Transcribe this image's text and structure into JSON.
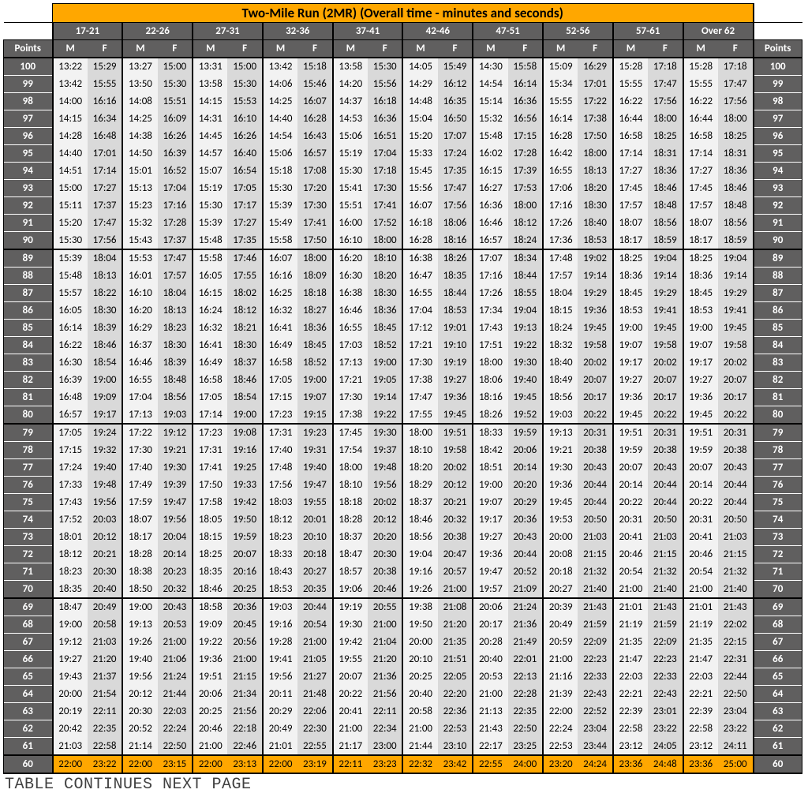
{
  "title": "Two-Mile Run (2MR) (Overall time - minutes and seconds)",
  "points_label": "Points",
  "footnote": "TABLE CONTINUES NEXT PAGE",
  "age_groups": [
    "17-21",
    "22-26",
    "27-31",
    "32-36",
    "37-41",
    "42-46",
    "47-51",
    "52-56",
    "57-61",
    "Over 62"
  ],
  "mf": [
    "M",
    "F"
  ],
  "colors": {
    "title_bg": "#ffa700",
    "header_bg": "#605f5f",
    "m_bg": "#f2f2f2",
    "f_bg": "#d9d9d9",
    "gold_bg": "#ffa700"
  },
  "section_breaks": [
    100,
    89,
    79,
    69,
    60
  ],
  "gold_row": 60,
  "rows": [
    {
      "p": 100,
      "v": [
        "13:22",
        "15:29",
        "13:27",
        "15:00",
        "13:31",
        "15:00",
        "13:42",
        "15:18",
        "13:58",
        "15:30",
        "14:05",
        "15:49",
        "14:30",
        "15:58",
        "15:09",
        "16:29",
        "15:28",
        "17:18",
        "15:28",
        "17:18"
      ]
    },
    {
      "p": 99,
      "v": [
        "13:42",
        "15:55",
        "13:50",
        "15:30",
        "13:58",
        "15:30",
        "14:06",
        "15:46",
        "14:20",
        "15:56",
        "14:29",
        "16:12",
        "14:54",
        "16:14",
        "15:34",
        "17:01",
        "15:55",
        "17:47",
        "15:55",
        "17:47"
      ]
    },
    {
      "p": 98,
      "v": [
        "14:00",
        "16:16",
        "14:08",
        "15:51",
        "14:15",
        "15:53",
        "14:25",
        "16:07",
        "14:37",
        "16:18",
        "14:48",
        "16:35",
        "15:14",
        "16:36",
        "15:55",
        "17:22",
        "16:22",
        "17:56",
        "16:22",
        "17:56"
      ]
    },
    {
      "p": 97,
      "v": [
        "14:15",
        "16:34",
        "14:25",
        "16:09",
        "14:31",
        "16:10",
        "14:40",
        "16:28",
        "14:53",
        "16:36",
        "15:04",
        "16:50",
        "15:32",
        "16:56",
        "16:14",
        "17:38",
        "16:44",
        "18:00",
        "16:44",
        "18:00"
      ]
    },
    {
      "p": 96,
      "v": [
        "14:28",
        "16:48",
        "14:38",
        "16:26",
        "14:45",
        "16:26",
        "14:54",
        "16:43",
        "15:06",
        "16:51",
        "15:20",
        "17:07",
        "15:48",
        "17:15",
        "16:28",
        "17:50",
        "16:58",
        "18:25",
        "16:58",
        "18:25"
      ]
    },
    {
      "p": 95,
      "v": [
        "14:40",
        "17:01",
        "14:50",
        "16:39",
        "14:57",
        "16:40",
        "15:06",
        "16:57",
        "15:19",
        "17:04",
        "15:33",
        "17:24",
        "16:02",
        "17:28",
        "16:42",
        "18:00",
        "17:14",
        "18:31",
        "17:14",
        "18:31"
      ]
    },
    {
      "p": 94,
      "v": [
        "14:51",
        "17:14",
        "15:01",
        "16:52",
        "15:07",
        "16:54",
        "15:18",
        "17:08",
        "15:30",
        "17:18",
        "15:45",
        "17:35",
        "16:15",
        "17:39",
        "16:55",
        "18:13",
        "17:27",
        "18:36",
        "17:27",
        "18:36"
      ]
    },
    {
      "p": 93,
      "v": [
        "15:00",
        "17:27",
        "15:13",
        "17:04",
        "15:19",
        "17:05",
        "15:30",
        "17:20",
        "15:41",
        "17:30",
        "15:56",
        "17:47",
        "16:27",
        "17:53",
        "17:06",
        "18:20",
        "17:45",
        "18:46",
        "17:45",
        "18:46"
      ]
    },
    {
      "p": 92,
      "v": [
        "15:11",
        "17:37",
        "15:23",
        "17:16",
        "15:30",
        "17:17",
        "15:39",
        "17:30",
        "15:51",
        "17:41",
        "16:07",
        "17:56",
        "16:36",
        "18:00",
        "17:16",
        "18:30",
        "17:57",
        "18:48",
        "17:57",
        "18:48"
      ]
    },
    {
      "p": 91,
      "v": [
        "15:20",
        "17:47",
        "15:32",
        "17:28",
        "15:39",
        "17:27",
        "15:49",
        "17:41",
        "16:00",
        "17:52",
        "16:18",
        "18:06",
        "16:46",
        "18:12",
        "17:26",
        "18:40",
        "18:07",
        "18:56",
        "18:07",
        "18:56"
      ]
    },
    {
      "p": 90,
      "v": [
        "15:30",
        "17:56",
        "15:43",
        "17:37",
        "15:48",
        "17:35",
        "15:58",
        "17:50",
        "16:10",
        "18:00",
        "16:28",
        "18:16",
        "16:57",
        "18:24",
        "17:36",
        "18:53",
        "18:17",
        "18:59",
        "18:17",
        "18:59"
      ]
    },
    {
      "p": 89,
      "v": [
        "15:39",
        "18:04",
        "15:53",
        "17:47",
        "15:58",
        "17:46",
        "16:07",
        "18:00",
        "16:20",
        "18:10",
        "16:38",
        "18:26",
        "17:07",
        "18:34",
        "17:48",
        "19:02",
        "18:25",
        "19:04",
        "18:25",
        "19:04"
      ]
    },
    {
      "p": 88,
      "v": [
        "15:48",
        "18:13",
        "16:01",
        "17:57",
        "16:05",
        "17:55",
        "16:16",
        "18:09",
        "16:30",
        "18:20",
        "16:47",
        "18:35",
        "17:16",
        "18:44",
        "17:57",
        "19:14",
        "18:36",
        "19:14",
        "18:36",
        "19:14"
      ]
    },
    {
      "p": 87,
      "v": [
        "15:57",
        "18:22",
        "16:10",
        "18:04",
        "16:15",
        "18:02",
        "16:25",
        "18:18",
        "16:38",
        "18:30",
        "16:55",
        "18:44",
        "17:26",
        "18:55",
        "18:04",
        "19:29",
        "18:45",
        "19:29",
        "18:45",
        "19:29"
      ]
    },
    {
      "p": 86,
      "v": [
        "16:05",
        "18:30",
        "16:20",
        "18:13",
        "16:24",
        "18:12",
        "16:32",
        "18:27",
        "16:46",
        "18:36",
        "17:04",
        "18:53",
        "17:34",
        "19:04",
        "18:15",
        "19:36",
        "18:53",
        "19:41",
        "18:53",
        "19:41"
      ]
    },
    {
      "p": 85,
      "v": [
        "16:14",
        "18:39",
        "16:29",
        "18:23",
        "16:32",
        "18:21",
        "16:41",
        "18:36",
        "16:55",
        "18:45",
        "17:12",
        "19:01",
        "17:43",
        "19:13",
        "18:24",
        "19:45",
        "19:00",
        "19:45",
        "19:00",
        "19:45"
      ]
    },
    {
      "p": 84,
      "v": [
        "16:22",
        "18:46",
        "16:37",
        "18:30",
        "16:41",
        "18:30",
        "16:49",
        "18:45",
        "17:03",
        "18:52",
        "17:21",
        "19:10",
        "17:51",
        "19:22",
        "18:32",
        "19:58",
        "19:07",
        "19:58",
        "19:07",
        "19:58"
      ]
    },
    {
      "p": 83,
      "v": [
        "16:30",
        "18:54",
        "16:46",
        "18:39",
        "16:49",
        "18:37",
        "16:58",
        "18:52",
        "17:13",
        "19:00",
        "17:30",
        "19:19",
        "18:00",
        "19:30",
        "18:40",
        "20:02",
        "19:17",
        "20:02",
        "19:17",
        "20:02"
      ]
    },
    {
      "p": 82,
      "v": [
        "16:39",
        "19:00",
        "16:55",
        "18:48",
        "16:58",
        "18:46",
        "17:05",
        "19:00",
        "17:21",
        "19:05",
        "17:38",
        "19:27",
        "18:06",
        "19:40",
        "18:49",
        "20:07",
        "19:27",
        "20:07",
        "19:27",
        "20:07"
      ]
    },
    {
      "p": 81,
      "v": [
        "16:48",
        "19:09",
        "17:04",
        "18:56",
        "17:05",
        "18:54",
        "17:15",
        "19:07",
        "17:30",
        "19:14",
        "17:47",
        "19:36",
        "18:16",
        "19:45",
        "18:56",
        "20:17",
        "19:36",
        "20:17",
        "19:36",
        "20:17"
      ]
    },
    {
      "p": 80,
      "v": [
        "16:57",
        "19:17",
        "17:13",
        "19:03",
        "17:14",
        "19:00",
        "17:23",
        "19:15",
        "17:38",
        "19:22",
        "17:55",
        "19:45",
        "18:26",
        "19:52",
        "19:03",
        "20:22",
        "19:45",
        "20:22",
        "19:45",
        "20:22"
      ]
    },
    {
      "p": 79,
      "v": [
        "17:05",
        "19:24",
        "17:22",
        "19:12",
        "17:23",
        "19:08",
        "17:31",
        "19:23",
        "17:45",
        "19:30",
        "18:00",
        "19:51",
        "18:33",
        "19:59",
        "19:13",
        "20:31",
        "19:51",
        "20:31",
        "19:51",
        "20:31"
      ]
    },
    {
      "p": 78,
      "v": [
        "17:15",
        "19:32",
        "17:30",
        "19:21",
        "17:31",
        "19:16",
        "17:40",
        "19:31",
        "17:54",
        "19:37",
        "18:10",
        "19:58",
        "18:42",
        "20:06",
        "19:21",
        "20:38",
        "19:59",
        "20:38",
        "19:59",
        "20:38"
      ]
    },
    {
      "p": 77,
      "v": [
        "17:24",
        "19:40",
        "17:40",
        "19:30",
        "17:41",
        "19:25",
        "17:48",
        "19:40",
        "18:00",
        "19:48",
        "18:20",
        "20:02",
        "18:51",
        "20:14",
        "19:30",
        "20:43",
        "20:07",
        "20:43",
        "20:07",
        "20:43"
      ]
    },
    {
      "p": 76,
      "v": [
        "17:33",
        "19:48",
        "17:49",
        "19:39",
        "17:50",
        "19:33",
        "17:56",
        "19:47",
        "18:10",
        "19:56",
        "18:29",
        "20:12",
        "19:00",
        "20:20",
        "19:36",
        "20:44",
        "20:14",
        "20:44",
        "20:14",
        "20:44"
      ]
    },
    {
      "p": 75,
      "v": [
        "17:43",
        "19:56",
        "17:59",
        "19:47",
        "17:58",
        "19:42",
        "18:03",
        "19:55",
        "18:18",
        "20:02",
        "18:37",
        "20:21",
        "19:07",
        "20:29",
        "19:45",
        "20:44",
        "20:22",
        "20:44",
        "20:22",
        "20:44"
      ]
    },
    {
      "p": 74,
      "v": [
        "17:52",
        "20:03",
        "18:07",
        "19:56",
        "18:05",
        "19:50",
        "18:12",
        "20:01",
        "18:28",
        "20:12",
        "18:46",
        "20:32",
        "19:17",
        "20:36",
        "19:53",
        "20:50",
        "20:31",
        "20:50",
        "20:31",
        "20:50"
      ]
    },
    {
      "p": 73,
      "v": [
        "18:01",
        "20:12",
        "18:17",
        "20:04",
        "18:15",
        "19:59",
        "18:23",
        "20:10",
        "18:37",
        "20:20",
        "18:56",
        "20:38",
        "19:27",
        "20:43",
        "20:00",
        "21:03",
        "20:41",
        "21:03",
        "20:41",
        "21:03"
      ]
    },
    {
      "p": 72,
      "v": [
        "18:12",
        "20:21",
        "18:28",
        "20:14",
        "18:25",
        "20:07",
        "18:33",
        "20:18",
        "18:47",
        "20:30",
        "19:04",
        "20:47",
        "19:36",
        "20:44",
        "20:08",
        "21:15",
        "20:46",
        "21:15",
        "20:46",
        "21:15"
      ]
    },
    {
      "p": 71,
      "v": [
        "18:23",
        "20:30",
        "18:38",
        "20:23",
        "18:35",
        "20:16",
        "18:43",
        "20:27",
        "18:57",
        "20:38",
        "19:16",
        "20:57",
        "19:47",
        "20:52",
        "20:18",
        "21:32",
        "20:54",
        "21:32",
        "20:54",
        "21:32"
      ]
    },
    {
      "p": 70,
      "v": [
        "18:35",
        "20:40",
        "18:50",
        "20:32",
        "18:46",
        "20:25",
        "18:53",
        "20:35",
        "19:06",
        "20:46",
        "19:26",
        "21:00",
        "19:57",
        "21:09",
        "20:27",
        "21:40",
        "21:00",
        "21:40",
        "21:00",
        "21:40"
      ]
    },
    {
      "p": 69,
      "v": [
        "18:47",
        "20:49",
        "19:00",
        "20:43",
        "18:58",
        "20:36",
        "19:03",
        "20:44",
        "19:19",
        "20:55",
        "19:38",
        "21:08",
        "20:06",
        "21:24",
        "20:39",
        "21:43",
        "21:01",
        "21:43",
        "21:01",
        "21:43"
      ]
    },
    {
      "p": 68,
      "v": [
        "19:00",
        "20:58",
        "19:13",
        "20:53",
        "19:09",
        "20:45",
        "19:16",
        "20:54",
        "19:30",
        "21:00",
        "19:50",
        "21:20",
        "20:17",
        "21:36",
        "20:49",
        "21:59",
        "21:19",
        "21:59",
        "21:19",
        "22:02"
      ]
    },
    {
      "p": 67,
      "v": [
        "19:12",
        "21:03",
        "19:26",
        "21:00",
        "19:22",
        "20:56",
        "19:28",
        "21:00",
        "19:42",
        "21:04",
        "20:00",
        "21:35",
        "20:28",
        "21:49",
        "20:59",
        "22:09",
        "21:35",
        "22:09",
        "21:35",
        "22:15"
      ]
    },
    {
      "p": 66,
      "v": [
        "19:27",
        "21:20",
        "19:40",
        "21:06",
        "19:36",
        "21:00",
        "19:41",
        "21:05",
        "19:55",
        "21:20",
        "20:10",
        "21:51",
        "20:40",
        "22:01",
        "21:00",
        "22:23",
        "21:47",
        "22:23",
        "21:47",
        "22:31"
      ]
    },
    {
      "p": 65,
      "v": [
        "19:43",
        "21:37",
        "19:56",
        "21:24",
        "19:51",
        "21:15",
        "19:56",
        "21:27",
        "20:07",
        "21:36",
        "20:25",
        "22:05",
        "20:53",
        "22:13",
        "21:16",
        "22:33",
        "22:03",
        "22:33",
        "22:03",
        "22:44"
      ]
    },
    {
      "p": 64,
      "v": [
        "20:00",
        "21:54",
        "20:12",
        "21:44",
        "20:06",
        "21:34",
        "20:11",
        "21:48",
        "20:22",
        "21:56",
        "20:40",
        "22:20",
        "21:00",
        "22:28",
        "21:39",
        "22:43",
        "22:21",
        "22:43",
        "22:21",
        "22:50"
      ]
    },
    {
      "p": 63,
      "v": [
        "20:19",
        "22:11",
        "20:30",
        "22:03",
        "20:25",
        "21:56",
        "20:29",
        "22:06",
        "20:41",
        "22:11",
        "20:58",
        "22:36",
        "21:13",
        "22:35",
        "22:00",
        "22:52",
        "22:39",
        "23:01",
        "22:39",
        "23:04"
      ]
    },
    {
      "p": 62,
      "v": [
        "20:42",
        "22:35",
        "20:52",
        "22:24",
        "20:46",
        "22:18",
        "20:49",
        "22:30",
        "21:00",
        "22:34",
        "21:00",
        "22:53",
        "21:43",
        "22:50",
        "22:24",
        "23:04",
        "22:58",
        "23:22",
        "22:58",
        "23:22"
      ]
    },
    {
      "p": 61,
      "v": [
        "21:03",
        "22:58",
        "21:14",
        "22:50",
        "21:00",
        "22:46",
        "21:01",
        "22:55",
        "21:17",
        "23:00",
        "21:44",
        "23:10",
        "22:17",
        "23:25",
        "22:53",
        "23:44",
        "23:12",
        "24:05",
        "23:12",
        "24:11"
      ]
    },
    {
      "p": 60,
      "v": [
        "22:00",
        "23:22",
        "22:00",
        "23:15",
        "22:00",
        "23:13",
        "22:00",
        "23:19",
        "22:11",
        "23:23",
        "22:32",
        "23:42",
        "22:55",
        "24:00",
        "23:20",
        "24:24",
        "23:36",
        "24:48",
        "23:36",
        "25:00"
      ]
    }
  ]
}
